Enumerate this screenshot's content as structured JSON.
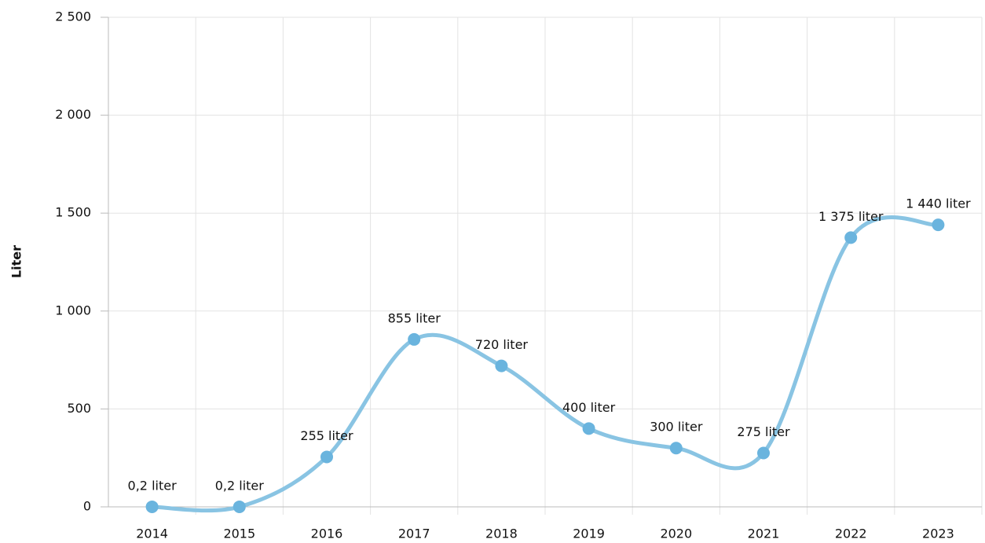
{
  "chart_data": {
    "type": "line",
    "y_label": "Liter",
    "categories": [
      "2014",
      "2015",
      "2016",
      "2017",
      "2018",
      "2019",
      "2020",
      "2021",
      "2022",
      "2023"
    ],
    "values": [
      0.2,
      0.2,
      255,
      855,
      720,
      400,
      300,
      275,
      1375,
      1440
    ],
    "value_labels": [
      "0,2 liter",
      "0,2 liter",
      "255 liter",
      "855 liter",
      "720 liter",
      "400 liter",
      "300 liter",
      "275 liter",
      "1 375 liter",
      "1 440 liter"
    ],
    "color": "#89c4e3",
    "marker_color": "#6ab4de",
    "ylim": [
      0,
      2500
    ],
    "yticks": [
      0,
      500,
      {
        "value": 1000,
        "label": "1 000"
      },
      {
        "value": 1500,
        "label": "1 500"
      },
      {
        "value": 2000,
        "label": "2 000"
      },
      {
        "value": 2500,
        "label": "2 500"
      }
    ],
    "grid": true,
    "smooth": true
  }
}
